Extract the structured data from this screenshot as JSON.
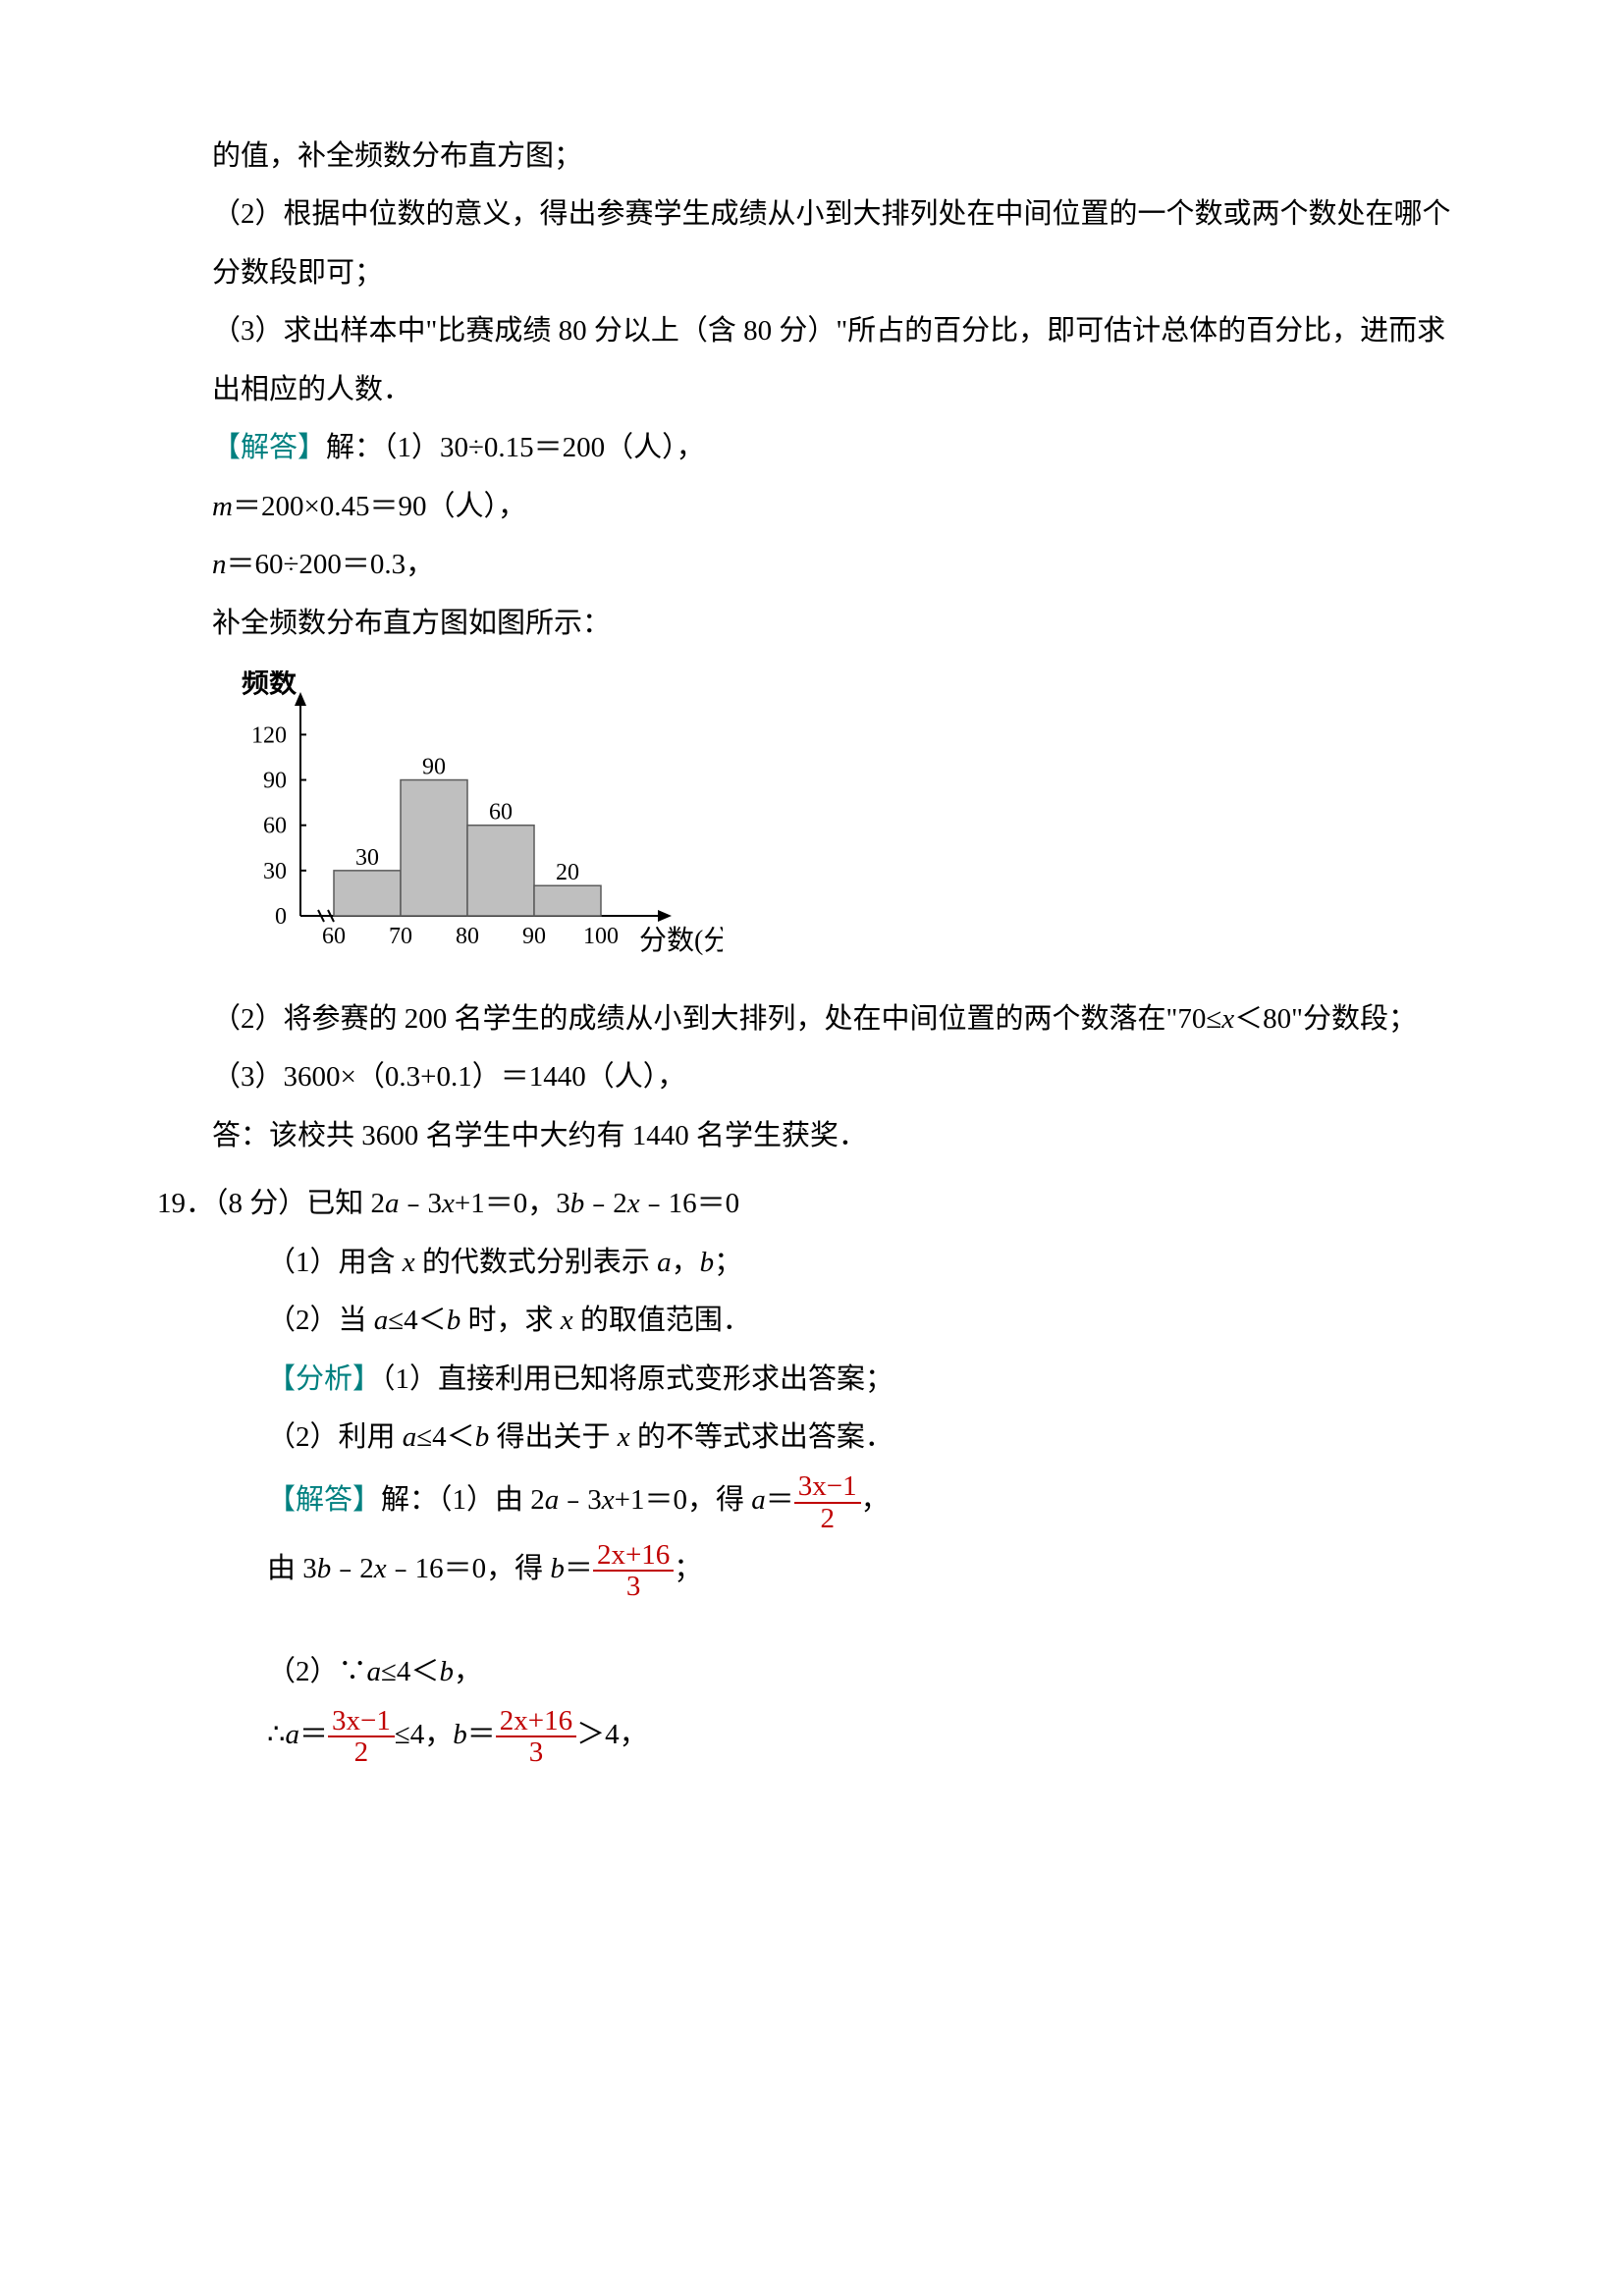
{
  "p1": "的值，补全频数分布直方图；",
  "p2": "（2）根据中位数的意义，得出参赛学生成绩从小到大排列处在中间位置的一个数或两个数处在哪个分数段即可；",
  "p3": "（3）求出样本中\"比赛成绩 80 分以上（含 80 分）\"所占的百分比，即可估计总体的百分比，进而求出相应的人数．",
  "ans_label": "【解答】",
  "a1": "解：（1）30÷0.15＝200（人），",
  "a2_pre": "m",
  "a2_rest": "＝200×0.45＝90（人），",
  "a3_pre": "n",
  "a3_rest": "＝60÷200＝0.3，",
  "a4": "补全频数分布直方图如图所示：",
  "chart": {
    "y_label": "频数",
    "x_label": "分数(分)",
    "y_ticks": [
      0,
      30,
      60,
      90,
      120
    ],
    "x_ticks": [
      60,
      70,
      80,
      90,
      100
    ],
    "bars": [
      {
        "x0": 60,
        "x1": 70,
        "value": 30,
        "label": "30"
      },
      {
        "x0": 70,
        "x1": 80,
        "value": 90,
        "label": "90"
      },
      {
        "x0": 80,
        "x1": 90,
        "value": 60,
        "label": "60"
      },
      {
        "x0": 90,
        "x1": 100,
        "value": 20,
        "label": "20"
      }
    ],
    "axis_color": "#000000",
    "bar_fill": "#bfbfbf",
    "bar_stroke": "#5a5a5a",
    "tick_font": 24,
    "label_font": 28,
    "break_mark": true
  },
  "a5_p1": "（2）将参赛的 200 名学生的成绩从小到大排列，处在中间位置的两个数落在\"70≤",
  "a5_var": "x",
  "a5_p2": "＜80\"分数段；",
  "a6": "（3）3600×（0.3+0.1）＝1440（人），",
  "a7": "答：该校共 3600 名学生中大约有 1440 名学生获奖．",
  "q19_num": "19．（8 分）已知 2",
  "q19_a": "a",
  "q19_mid1": "﹣3",
  "q19_x1": "x",
  "q19_mid2": "+1＝0，3",
  "q19_b": "b",
  "q19_mid3": "﹣2",
  "q19_x2": "x",
  "q19_end": "﹣16＝0",
  "q19_s1_p1": "（1）用含 ",
  "q19_s1_x": "x",
  "q19_s1_p2": " 的代数式分别表示 ",
  "q19_s1_a": "a",
  "q19_s1_comma": "，",
  "q19_s1_b": "b",
  "q19_s1_end": "；",
  "q19_s2_p1": "（2）当 ",
  "q19_s2_a": "a",
  "q19_s2_mid": "≤4＜",
  "q19_s2_b": "b",
  "q19_s2_p2": " 时，求 ",
  "q19_s2_x": "x",
  "q19_s2_end": " 的取值范围．",
  "analysis_label": "【分析】",
  "an1": "（1）直接利用已知将原式变形求出答案；",
  "an2_p1": "（2）利用 ",
  "an2_a": "a",
  "an2_mid": "≤4＜",
  "an2_b": "b",
  "an2_p2": " 得出关于 ",
  "an2_x": "x",
  "an2_end": " 的不等式求出答案．",
  "sol1_p1": "解：（1）由 2",
  "sol1_a": "a",
  "sol1_p2": "﹣3",
  "sol1_x": "x",
  "sol1_p3": "+1＝0，得 ",
  "sol1_a2": "a",
  "sol1_eq": "＝",
  "frac1_num": "3x−1",
  "frac1_den": "2",
  "sol1_end": "，",
  "sol2_p1": "由 3",
  "sol2_b": "b",
  "sol2_p2": "﹣2",
  "sol2_x": "x",
  "sol2_p3": "﹣16＝0，得 ",
  "sol2_b2": "b",
  "sol2_eq": "＝",
  "frac2_num": "2x+16",
  "frac2_den": "3",
  "sol2_end": "；",
  "sol3_p1": "（2）∵",
  "sol3_a": "a",
  "sol3_mid": "≤4＜",
  "sol3_b": "b",
  "sol3_end": "，",
  "sol4_p1": "∴",
  "sol4_a": "a",
  "sol4_eq1": "＝",
  "sol4_le": "≤4，",
  "sol4_b": "b",
  "sol4_eq2": "＝",
  "sol4_gt": "＞4，"
}
